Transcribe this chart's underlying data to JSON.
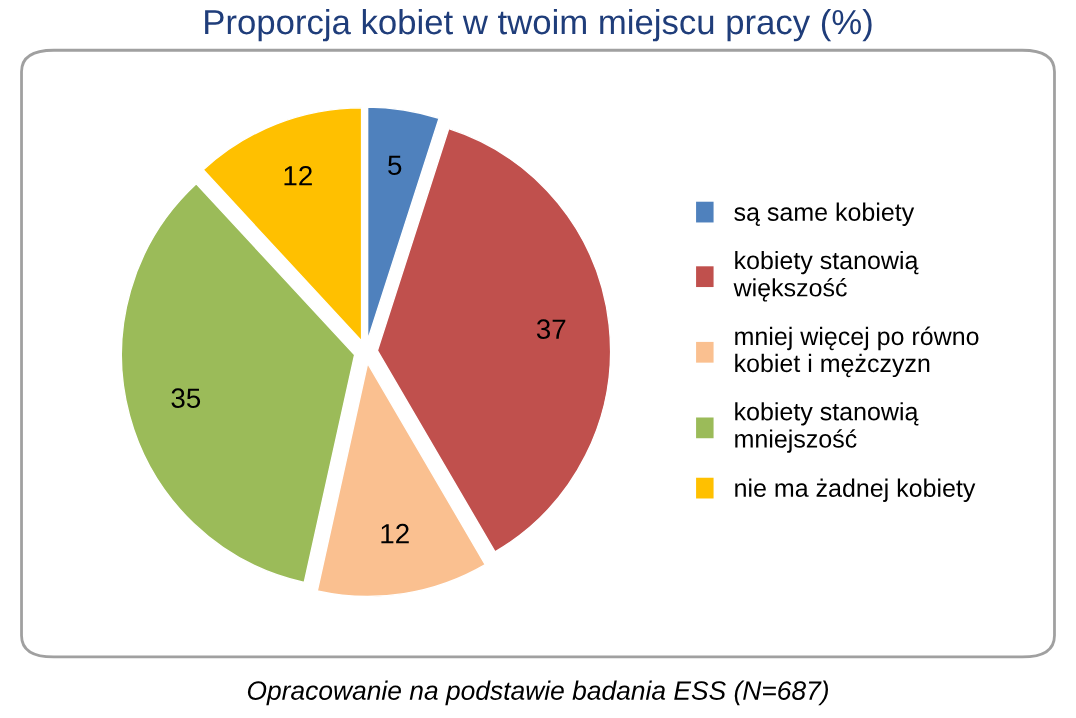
{
  "chart_data": {
    "type": "pie",
    "title": "Proporcja kobiet w twoim miejscu pracy (%)",
    "categories": [
      "są same kobiety",
      "kobiety stanowią większość",
      "mniej więcej po równo kobiet i mężczyzn",
      "kobiety stanowią mniejszość",
      "nie ma żadnej kobiety"
    ],
    "values": [
      5,
      37,
      12,
      35,
      12
    ],
    "colors": [
      "#4f81bd",
      "#c0504d",
      "#fac090",
      "#9bbb59",
      "#ffc000"
    ],
    "data_labels": true,
    "legend": "right",
    "annotations": [
      "Opracowanie na podstawie badania ESS (N=687)"
    ]
  }
}
